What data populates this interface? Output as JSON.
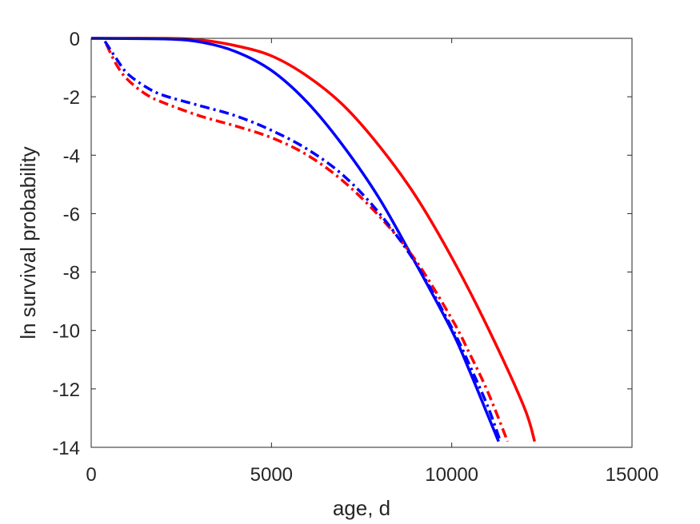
{
  "chart_data": {
    "type": "line",
    "title": "",
    "xlabel": "age, d",
    "ylabel": "ln survival probability",
    "xlim": [
      0,
      15000
    ],
    "ylim": [
      -14,
      0
    ],
    "xticks": [
      0,
      5000,
      10000,
      15000
    ],
    "yticks": [
      0,
      -2,
      -4,
      -6,
      -8,
      -10,
      -12,
      -14
    ],
    "xtick_labels": [
      "0",
      "5000",
      "10000",
      "15000"
    ],
    "ytick_labels": [
      "0",
      "-2",
      "-4",
      "-6",
      "-8",
      "-10",
      "-12",
      "-14"
    ],
    "grid": false,
    "legend": "none",
    "series": [
      {
        "color": "#ff0000",
        "style": "solid",
        "x": [
          0,
          2000,
          3000,
          4000,
          5000,
          6000,
          7000,
          8000,
          9000,
          10000,
          11000,
          12000,
          12300
        ],
        "y": [
          0,
          0,
          -0.05,
          -0.25,
          -0.6,
          -1.3,
          -2.3,
          -3.7,
          -5.4,
          -7.5,
          -9.9,
          -12.6,
          -13.8
        ]
      },
      {
        "color": "#0000ff",
        "style": "solid",
        "x": [
          0,
          2000,
          3000,
          4000,
          5000,
          6000,
          7000,
          8000,
          9000,
          10000,
          10500,
          11000,
          11300
        ],
        "y": [
          0,
          -0.02,
          -0.12,
          -0.45,
          -1.1,
          -2.2,
          -3.7,
          -5.5,
          -7.7,
          -10.0,
          -11.4,
          -12.9,
          -13.8
        ]
      },
      {
        "color": "#ff0000",
        "style": "dashdot",
        "x": [
          420,
          700,
          1000,
          1500,
          2000,
          3000,
          4000,
          5000,
          6000,
          7000,
          8000,
          9000,
          10000,
          10500,
          11000,
          11550
        ],
        "y": [
          -0.2,
          -0.9,
          -1.4,
          -1.9,
          -2.2,
          -2.65,
          -3.0,
          -3.4,
          -4.0,
          -4.9,
          -6.1,
          -7.6,
          -9.6,
          -10.8,
          -12.1,
          -13.8
        ]
      },
      {
        "color": "#0000ff",
        "style": "dashdot",
        "x": [
          380,
          700,
          1000,
          1500,
          2000,
          3000,
          4000,
          5000,
          6000,
          7000,
          8000,
          9000,
          10000,
          10500,
          11000,
          11350
        ],
        "y": [
          -0.1,
          -0.7,
          -1.2,
          -1.65,
          -1.95,
          -2.3,
          -2.65,
          -3.15,
          -3.8,
          -4.7,
          -6.0,
          -7.7,
          -9.9,
          -11.2,
          -12.6,
          -13.8
        ]
      }
    ]
  }
}
